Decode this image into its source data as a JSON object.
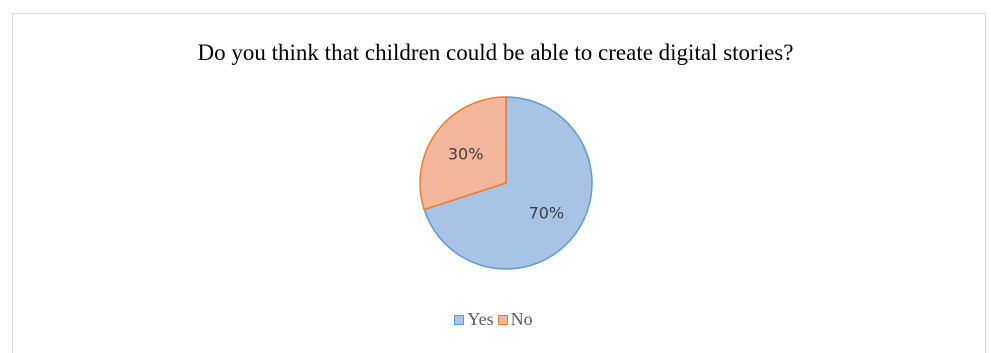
{
  "chart_data": {
    "type": "pie",
    "title": "Do you think that children could be able to create digital stories?",
    "categories": [
      "Yes",
      "No"
    ],
    "values": [
      70,
      30
    ],
    "labels": [
      "70%",
      "30%"
    ],
    "colors": {
      "Yes": {
        "fill": "#a7c4e6",
        "stroke": "#5b9bd5"
      },
      "No": {
        "fill": "#f5b79c",
        "stroke": "#ed7d31"
      }
    },
    "legend_placement": "bottom"
  }
}
